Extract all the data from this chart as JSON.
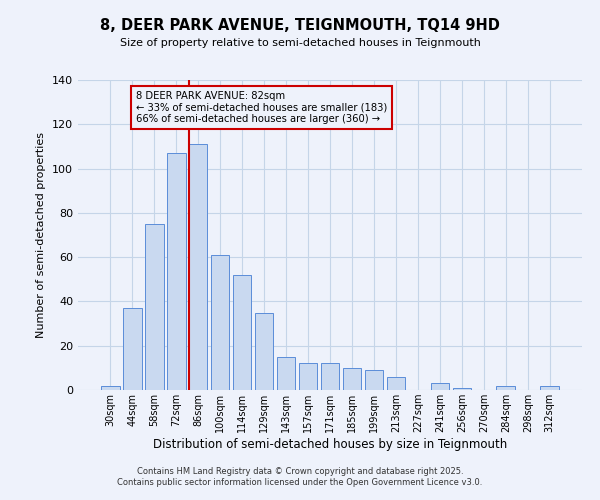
{
  "title": "8, DEER PARK AVENUE, TEIGNMOUTH, TQ14 9HD",
  "subtitle": "Size of property relative to semi-detached houses in Teignmouth",
  "xlabel": "Distribution of semi-detached houses by size in Teignmouth",
  "ylabel": "Number of semi-detached properties",
  "bar_labels": [
    "30sqm",
    "44sqm",
    "58sqm",
    "72sqm",
    "86sqm",
    "100sqm",
    "114sqm",
    "129sqm",
    "143sqm",
    "157sqm",
    "171sqm",
    "185sqm",
    "199sqm",
    "213sqm",
    "227sqm",
    "241sqm",
    "256sqm",
    "270sqm",
    "284sqm",
    "298sqm",
    "312sqm"
  ],
  "bar_values": [
    2,
    37,
    75,
    107,
    111,
    61,
    52,
    35,
    15,
    12,
    12,
    10,
    9,
    6,
    0,
    3,
    1,
    0,
    2,
    0,
    2
  ],
  "bar_color": "#c9d9f0",
  "bar_edge_color": "#5b8dd9",
  "ylim": [
    0,
    140
  ],
  "yticks": [
    0,
    20,
    40,
    60,
    80,
    100,
    120,
    140
  ],
  "property_line_color": "#cc0000",
  "annotation_title": "8 DEER PARK AVENUE: 82sqm",
  "annotation_line1": "← 33% of semi-detached houses are smaller (183)",
  "annotation_line2": "66% of semi-detached houses are larger (360) →",
  "annotation_box_color": "#cc0000",
  "footer1": "Contains HM Land Registry data © Crown copyright and database right 2025.",
  "footer2": "Contains public sector information licensed under the Open Government Licence v3.0.",
  "background_color": "#eef2fb",
  "grid_color": "#c5d5e8"
}
